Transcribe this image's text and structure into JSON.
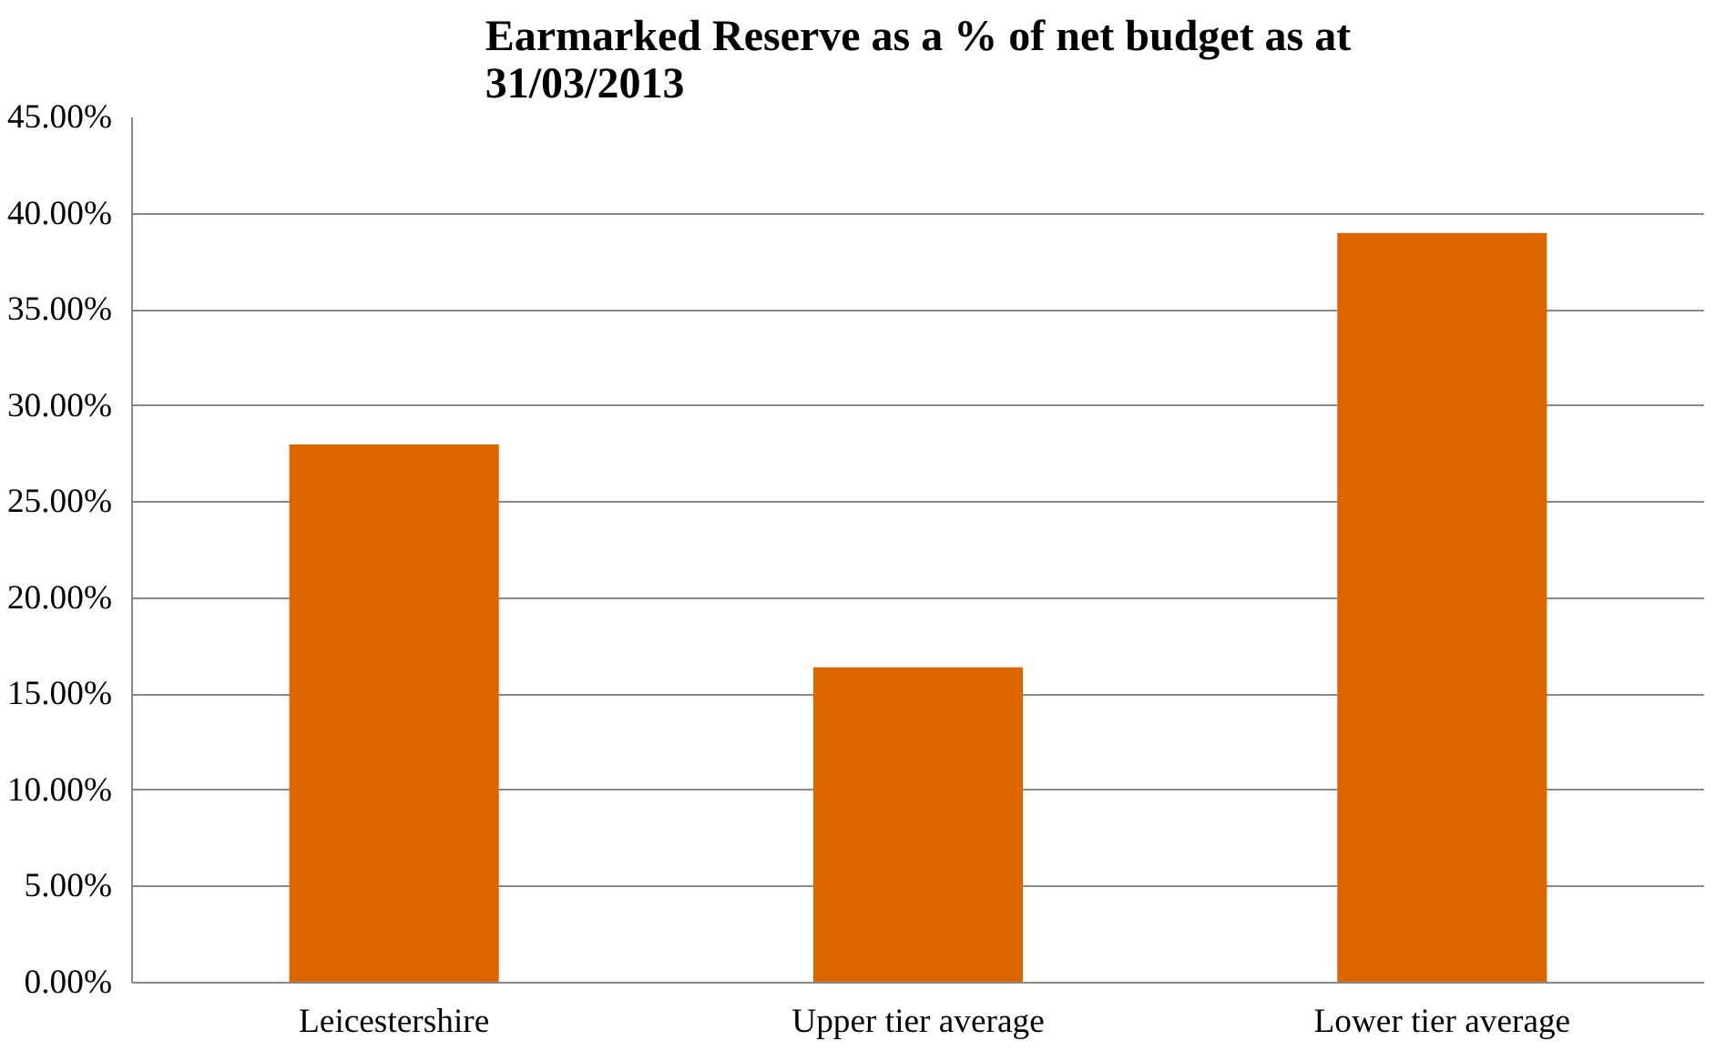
{
  "chart_data": {
    "type": "bar",
    "title": "Earmarked Reserve as a % of net budget as at 31/03/2013",
    "categories": [
      "Leicestershire",
      "Upper tier average",
      "Lower tier average"
    ],
    "values": [
      28.0,
      16.4,
      39.0
    ],
    "color": "#dd6600",
    "ylim": [
      0,
      45
    ],
    "yticks": [
      {
        "value": 0,
        "label": "0.00%"
      },
      {
        "value": 5,
        "label": "5.00%"
      },
      {
        "value": 10,
        "label": "10.00%"
      },
      {
        "value": 15,
        "label": "15.00%"
      },
      {
        "value": 20,
        "label": "20.00%"
      },
      {
        "value": 25,
        "label": "25.00%"
      },
      {
        "value": 30,
        "label": "30.00%"
      },
      {
        "value": 35,
        "label": "35.00%"
      },
      {
        "value": 40,
        "label": "40.00%"
      },
      {
        "value": 45,
        "label": "45.00%"
      }
    ],
    "grid": "y"
  }
}
